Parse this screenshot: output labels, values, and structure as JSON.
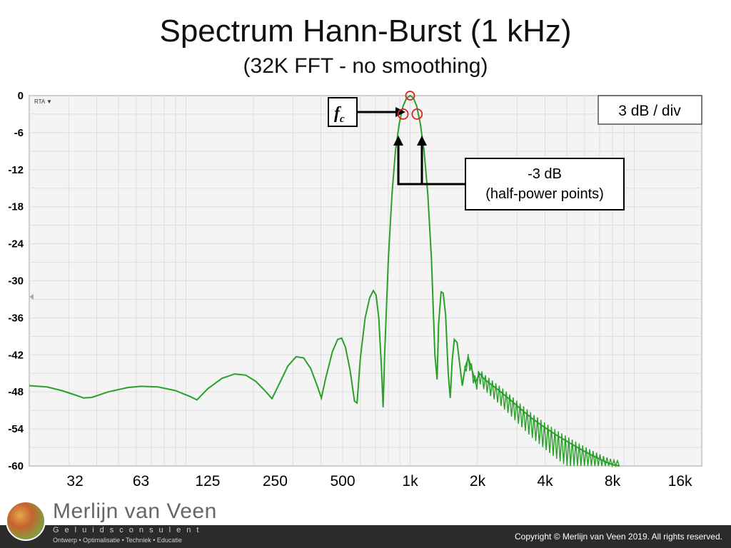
{
  "header": {
    "title": "Spectrum Hann-Burst (1 kHz)",
    "subtitle": "(32K FFT - no smoothing)"
  },
  "chart_data": {
    "type": "line",
    "title": "Spectrum Hann-Burst (1 kHz)",
    "subtitle": "(32K FFT - no smoothing)",
    "xlabel": "",
    "ylabel": "",
    "x_scale": "log",
    "xlim": [
      20,
      20000
    ],
    "ylim": [
      -60,
      0
    ],
    "y_ticks": [
      "0",
      "-6",
      "-12",
      "-18",
      "-24",
      "-30",
      "-36",
      "-42",
      "-48",
      "-54",
      "-60"
    ],
    "x_ticks": [
      {
        "value": 32,
        "label": "32"
      },
      {
        "value": 63,
        "label": "63"
      },
      {
        "value": 125,
        "label": "125"
      },
      {
        "value": 250,
        "label": "250"
      },
      {
        "value": 500,
        "label": "500"
      },
      {
        "value": 1000,
        "label": "1k"
      },
      {
        "value": 2000,
        "label": "2k"
      },
      {
        "value": 4000,
        "label": "4k"
      },
      {
        "value": 8000,
        "label": "8k"
      },
      {
        "value": 16000,
        "label": "16k"
      }
    ],
    "grid": true,
    "rta_label": "RTA ▼",
    "scale_box": "3 dB / div",
    "line_color": "#2aa02a",
    "marker_color": "#e02020",
    "series": [
      {
        "points": [
          [
            20,
            -47.0
          ],
          [
            24,
            -47.2
          ],
          [
            28,
            -47.8
          ],
          [
            32,
            -48.5
          ],
          [
            35,
            -49.0
          ],
          [
            38,
            -48.9
          ],
          [
            45,
            -48.0
          ],
          [
            55,
            -47.3
          ],
          [
            63,
            -47.1
          ],
          [
            75,
            -47.2
          ],
          [
            90,
            -47.8
          ],
          [
            105,
            -48.8
          ],
          [
            112,
            -49.3
          ],
          [
            125,
            -47.5
          ],
          [
            145,
            -45.8
          ],
          [
            165,
            -45.1
          ],
          [
            185,
            -45.3
          ],
          [
            205,
            -46.3
          ],
          [
            225,
            -47.8
          ],
          [
            242,
            -49.1
          ],
          [
            260,
            -46.8
          ],
          [
            285,
            -43.8
          ],
          [
            310,
            -42.3
          ],
          [
            335,
            -42.5
          ],
          [
            360,
            -44.2
          ],
          [
            385,
            -47.0
          ],
          [
            402,
            -49.0
          ],
          [
            420,
            -45.8
          ],
          [
            450,
            -41.5
          ],
          [
            475,
            -39.5
          ],
          [
            495,
            -39.3
          ],
          [
            515,
            -40.8
          ],
          [
            540,
            -44.5
          ],
          [
            565,
            -49.5
          ],
          [
            580,
            -49.8
          ],
          [
            600,
            -42.5
          ],
          [
            630,
            -36.0
          ],
          [
            660,
            -32.8
          ],
          [
            685,
            -31.6
          ],
          [
            705,
            -32.3
          ],
          [
            725,
            -36.0
          ],
          [
            745,
            -44.0
          ],
          [
            758,
            -50.5
          ],
          [
            770,
            -42.0
          ],
          [
            800,
            -26.5
          ],
          [
            830,
            -16.0
          ],
          [
            860,
            -9.0
          ],
          [
            895,
            -4.5
          ],
          [
            930,
            -1.7
          ],
          [
            965,
            -0.4
          ],
          [
            1000,
            0.0
          ],
          [
            1035,
            -0.4
          ],
          [
            1070,
            -1.7
          ],
          [
            1110,
            -4.5
          ],
          [
            1155,
            -9.0
          ],
          [
            1200,
            -16.0
          ],
          [
            1245,
            -26.5
          ],
          [
            1290,
            -42.0
          ],
          [
            1320,
            -46.0
          ],
          [
            1340,
            -37.0
          ],
          [
            1375,
            -31.8
          ],
          [
            1405,
            -32.0
          ],
          [
            1440,
            -35.5
          ],
          [
            1480,
            -45.0
          ],
          [
            1510,
            -49.0
          ],
          [
            1540,
            -43.0
          ],
          [
            1575,
            -39.5
          ],
          [
            1620,
            -40.0
          ],
          [
            1665,
            -43.5
          ],
          [
            1710,
            -47.0
          ],
          [
            1760,
            -44.0
          ],
          [
            1820,
            -42.5
          ],
          [
            1890,
            -44.5
          ],
          [
            1960,
            -46.5
          ],
          [
            2040,
            -45.0
          ],
          [
            2150,
            -46.0
          ],
          [
            2300,
            -46.8
          ],
          [
            2500,
            -47.8
          ],
          [
            2800,
            -49.3
          ],
          [
            3100,
            -50.7
          ],
          [
            3500,
            -52.3
          ],
          [
            4000,
            -53.8
          ],
          [
            4500,
            -55.0
          ],
          [
            5000,
            -56.0
          ],
          [
            5700,
            -57.2
          ],
          [
            6500,
            -58.3
          ],
          [
            7300,
            -59.2
          ],
          [
            8000,
            -59.8
          ],
          [
            8600,
            -60.0
          ]
        ]
      }
    ],
    "annotations": {
      "fc": {
        "label_main": "f",
        "label_sub": "c",
        "freq": 1000,
        "level": 0
      },
      "half_power": {
        "line1": "-3 dB",
        "line2": "(half-power points)",
        "points": [
          [
            930,
            -3
          ],
          [
            1075,
            -3
          ]
        ]
      }
    }
  },
  "footer": {
    "copyright": "Copyright © Merlijn van Veen 2019. All rights reserved.",
    "brand_name": "Merlijn van Veen",
    "brand_sub": "Geluidsconsulent",
    "brand_tag": "Ontwerp • Optimalisatie • Techniek • Educatie"
  }
}
